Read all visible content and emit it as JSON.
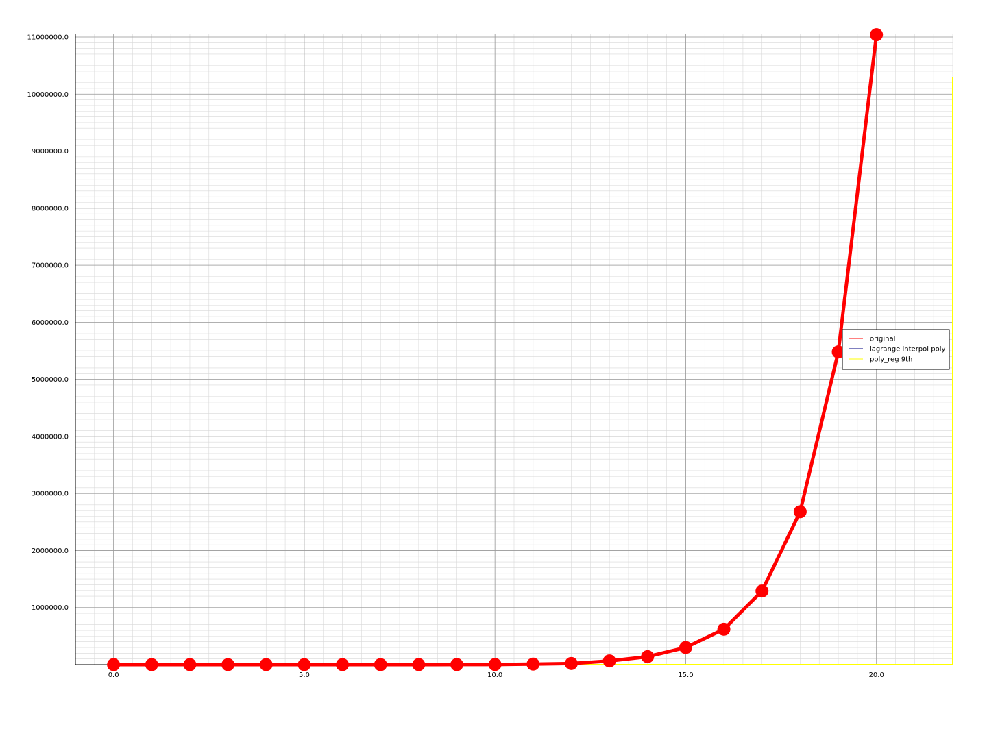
{
  "chart_data": {
    "type": "line",
    "title": "",
    "xlabel": "",
    "ylabel": "",
    "xlim": [
      -1,
      22
    ],
    "ylim": [
      0,
      11000000
    ],
    "x_ticks": [
      {
        "value": 0,
        "label": "0.0"
      },
      {
        "value": 5,
        "label": "5.0"
      },
      {
        "value": 10,
        "label": "10.0"
      },
      {
        "value": 15,
        "label": "15.0"
      },
      {
        "value": 20,
        "label": "20.0"
      }
    ],
    "y_ticks": [
      {
        "value": 1000000,
        "label": "1000000.0"
      },
      {
        "value": 2000000,
        "label": "2000000.0"
      },
      {
        "value": 3000000,
        "label": "3000000.0"
      },
      {
        "value": 4000000,
        "label": "4000000.0"
      },
      {
        "value": 5000000,
        "label": "5000000.0"
      },
      {
        "value": 6000000,
        "label": "6000000.0"
      },
      {
        "value": 7000000,
        "label": "7000000.0"
      },
      {
        "value": 8000000,
        "label": "8000000.0"
      },
      {
        "value": 9000000,
        "label": "9000000.0"
      },
      {
        "value": 10000000,
        "label": "10000000.0"
      },
      {
        "value": 11000000,
        "label": "11000000.0"
      }
    ],
    "grid": true,
    "legend_position": "right",
    "series": [
      {
        "name": "original",
        "color": "#ff0000",
        "markers": true,
        "x": [
          0,
          1,
          2,
          3,
          4,
          5,
          6,
          7,
          8,
          9,
          10,
          11,
          12,
          13,
          14,
          15,
          16,
          17,
          18,
          19,
          20
        ],
        "y": [
          1,
          3,
          7,
          15,
          31,
          63,
          127,
          255,
          511,
          1023,
          2047,
          9300,
          20000,
          65000,
          140000,
          300000,
          620000,
          1290000,
          2680000,
          5480000,
          11040000
        ]
      },
      {
        "name": "lagrange interpol poly",
        "color": "#000080",
        "markers": false,
        "x": [
          0,
          1,
          2,
          3,
          4,
          5,
          6,
          7,
          8,
          9,
          10,
          11,
          12,
          13,
          14,
          15,
          16,
          17,
          18,
          19,
          20
        ],
        "y": [
          1,
          3,
          7,
          15,
          31,
          63,
          127,
          255,
          511,
          1023,
          2047,
          9300,
          20000,
          65000,
          140000,
          300000,
          620000,
          1290000,
          2680000,
          5480000,
          11040000
        ]
      },
      {
        "name": "poly_reg 9th",
        "color": "#ffff00",
        "markers": false,
        "x": [
          0,
          2,
          4,
          6,
          8,
          10,
          12,
          14,
          16,
          18,
          20,
          21,
          21.5,
          21.8,
          22,
          22
        ],
        "y": [
          0,
          0,
          0,
          0,
          0,
          0,
          0,
          0,
          0,
          0,
          0,
          0,
          0,
          0,
          0,
          10300000
        ]
      }
    ]
  }
}
